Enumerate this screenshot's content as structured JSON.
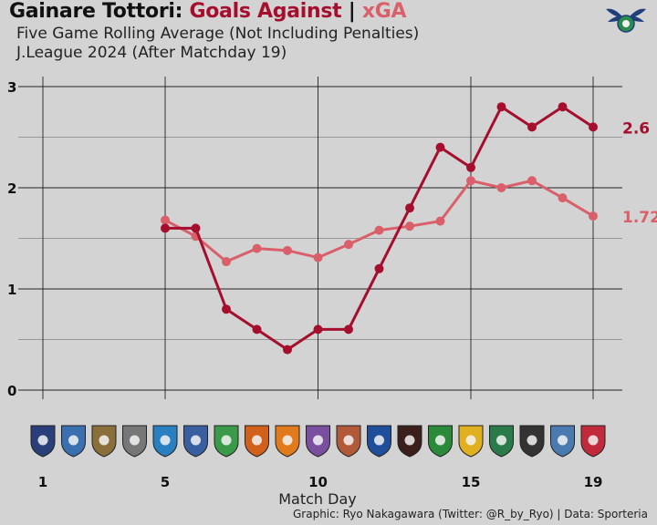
{
  "header": {
    "title_team": "Gainare Tottori:",
    "title_ga": "Goals Against",
    "title_sep": "|",
    "title_xga": "xGA",
    "subtitle1": "Five Game Rolling Average (Not Including Penalties)",
    "subtitle2": "J.League 2024 (After Matchday 19)",
    "xlabel": "Match Day",
    "credit": "Graphic: Ryo Nakagawara (Twitter: @R_by_Ryo) | Data: Sporteria"
  },
  "colors": {
    "ga": "#a50f2d",
    "xga": "#d9606a",
    "background": "#d3d3d3",
    "grid": "#111111"
  },
  "chart_data": {
    "type": "line",
    "xlabel": "Match Day",
    "ylabel": "",
    "xlim": [
      1,
      19
    ],
    "ylim": [
      0,
      3
    ],
    "x_ticks": [
      1,
      5,
      10,
      15,
      19
    ],
    "y_ticks": [
      0,
      1,
      2,
      3
    ],
    "series": [
      {
        "name": "Goals Against",
        "color": "#a50f2d",
        "x": [
          5,
          6,
          7,
          8,
          9,
          10,
          11,
          12,
          13,
          14,
          15,
          16,
          17,
          18,
          19
        ],
        "values": [
          1.6,
          1.6,
          0.8,
          0.6,
          0.4,
          0.6,
          0.6,
          1.2,
          1.8,
          2.4,
          2.2,
          2.8,
          2.6,
          2.8,
          2.6
        ],
        "end_label": "2.6"
      },
      {
        "name": "xGA",
        "color": "#d9606a",
        "x": [
          5,
          6,
          7,
          8,
          9,
          10,
          11,
          12,
          13,
          14,
          15,
          16,
          17,
          18,
          19
        ],
        "values": [
          1.68,
          1.52,
          1.27,
          1.4,
          1.38,
          1.31,
          1.44,
          1.58,
          1.62,
          1.67,
          2.07,
          2.0,
          2.07,
          1.9,
          1.72
        ],
        "end_label": "1.72"
      }
    ],
    "opponent_logos_shown": 19,
    "grid": true
  }
}
